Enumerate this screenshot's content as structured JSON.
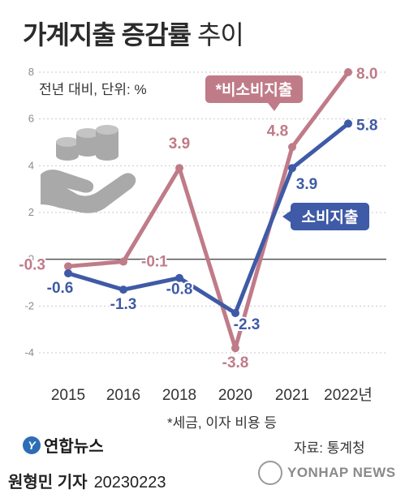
{
  "title": {
    "main": "가계지출 증감률",
    "sub": "추이"
  },
  "unit_note": "전년 대비, 단위: %",
  "footnote": "*세금, 이자 비용 등",
  "source": "자료: 통계청",
  "logo_text": "연합뉴스",
  "author": {
    "name": "원형민 기자",
    "date": "20230223"
  },
  "watermark": "YONHAP NEWS",
  "chart_data": {
    "type": "line",
    "categories": [
      "2015",
      "2016",
      "2018",
      "2020",
      "2021",
      "2022년"
    ],
    "ylim": [
      -4,
      8
    ],
    "yticks": [
      "8",
      "6",
      "4",
      "2",
      "0",
      "-2",
      "-4"
    ],
    "series": [
      {
        "name": "*비소비지출",
        "color": "#c07b88",
        "values": [
          -0.3,
          -0.1,
          3.9,
          -3.8,
          4.8,
          8.0
        ],
        "labels": [
          "-0.3",
          "-0.1",
          "3.9",
          "-3.8",
          "4.8",
          "8.0"
        ]
      },
      {
        "name": "소비지출",
        "color": "#3f5aa6",
        "values": [
          -0.6,
          -1.3,
          -0.8,
          -2.3,
          3.9,
          5.8
        ],
        "labels": [
          "-0.6",
          "-1.3",
          "-0.8",
          "-2.3",
          "3.9",
          "5.8"
        ]
      }
    ]
  }
}
